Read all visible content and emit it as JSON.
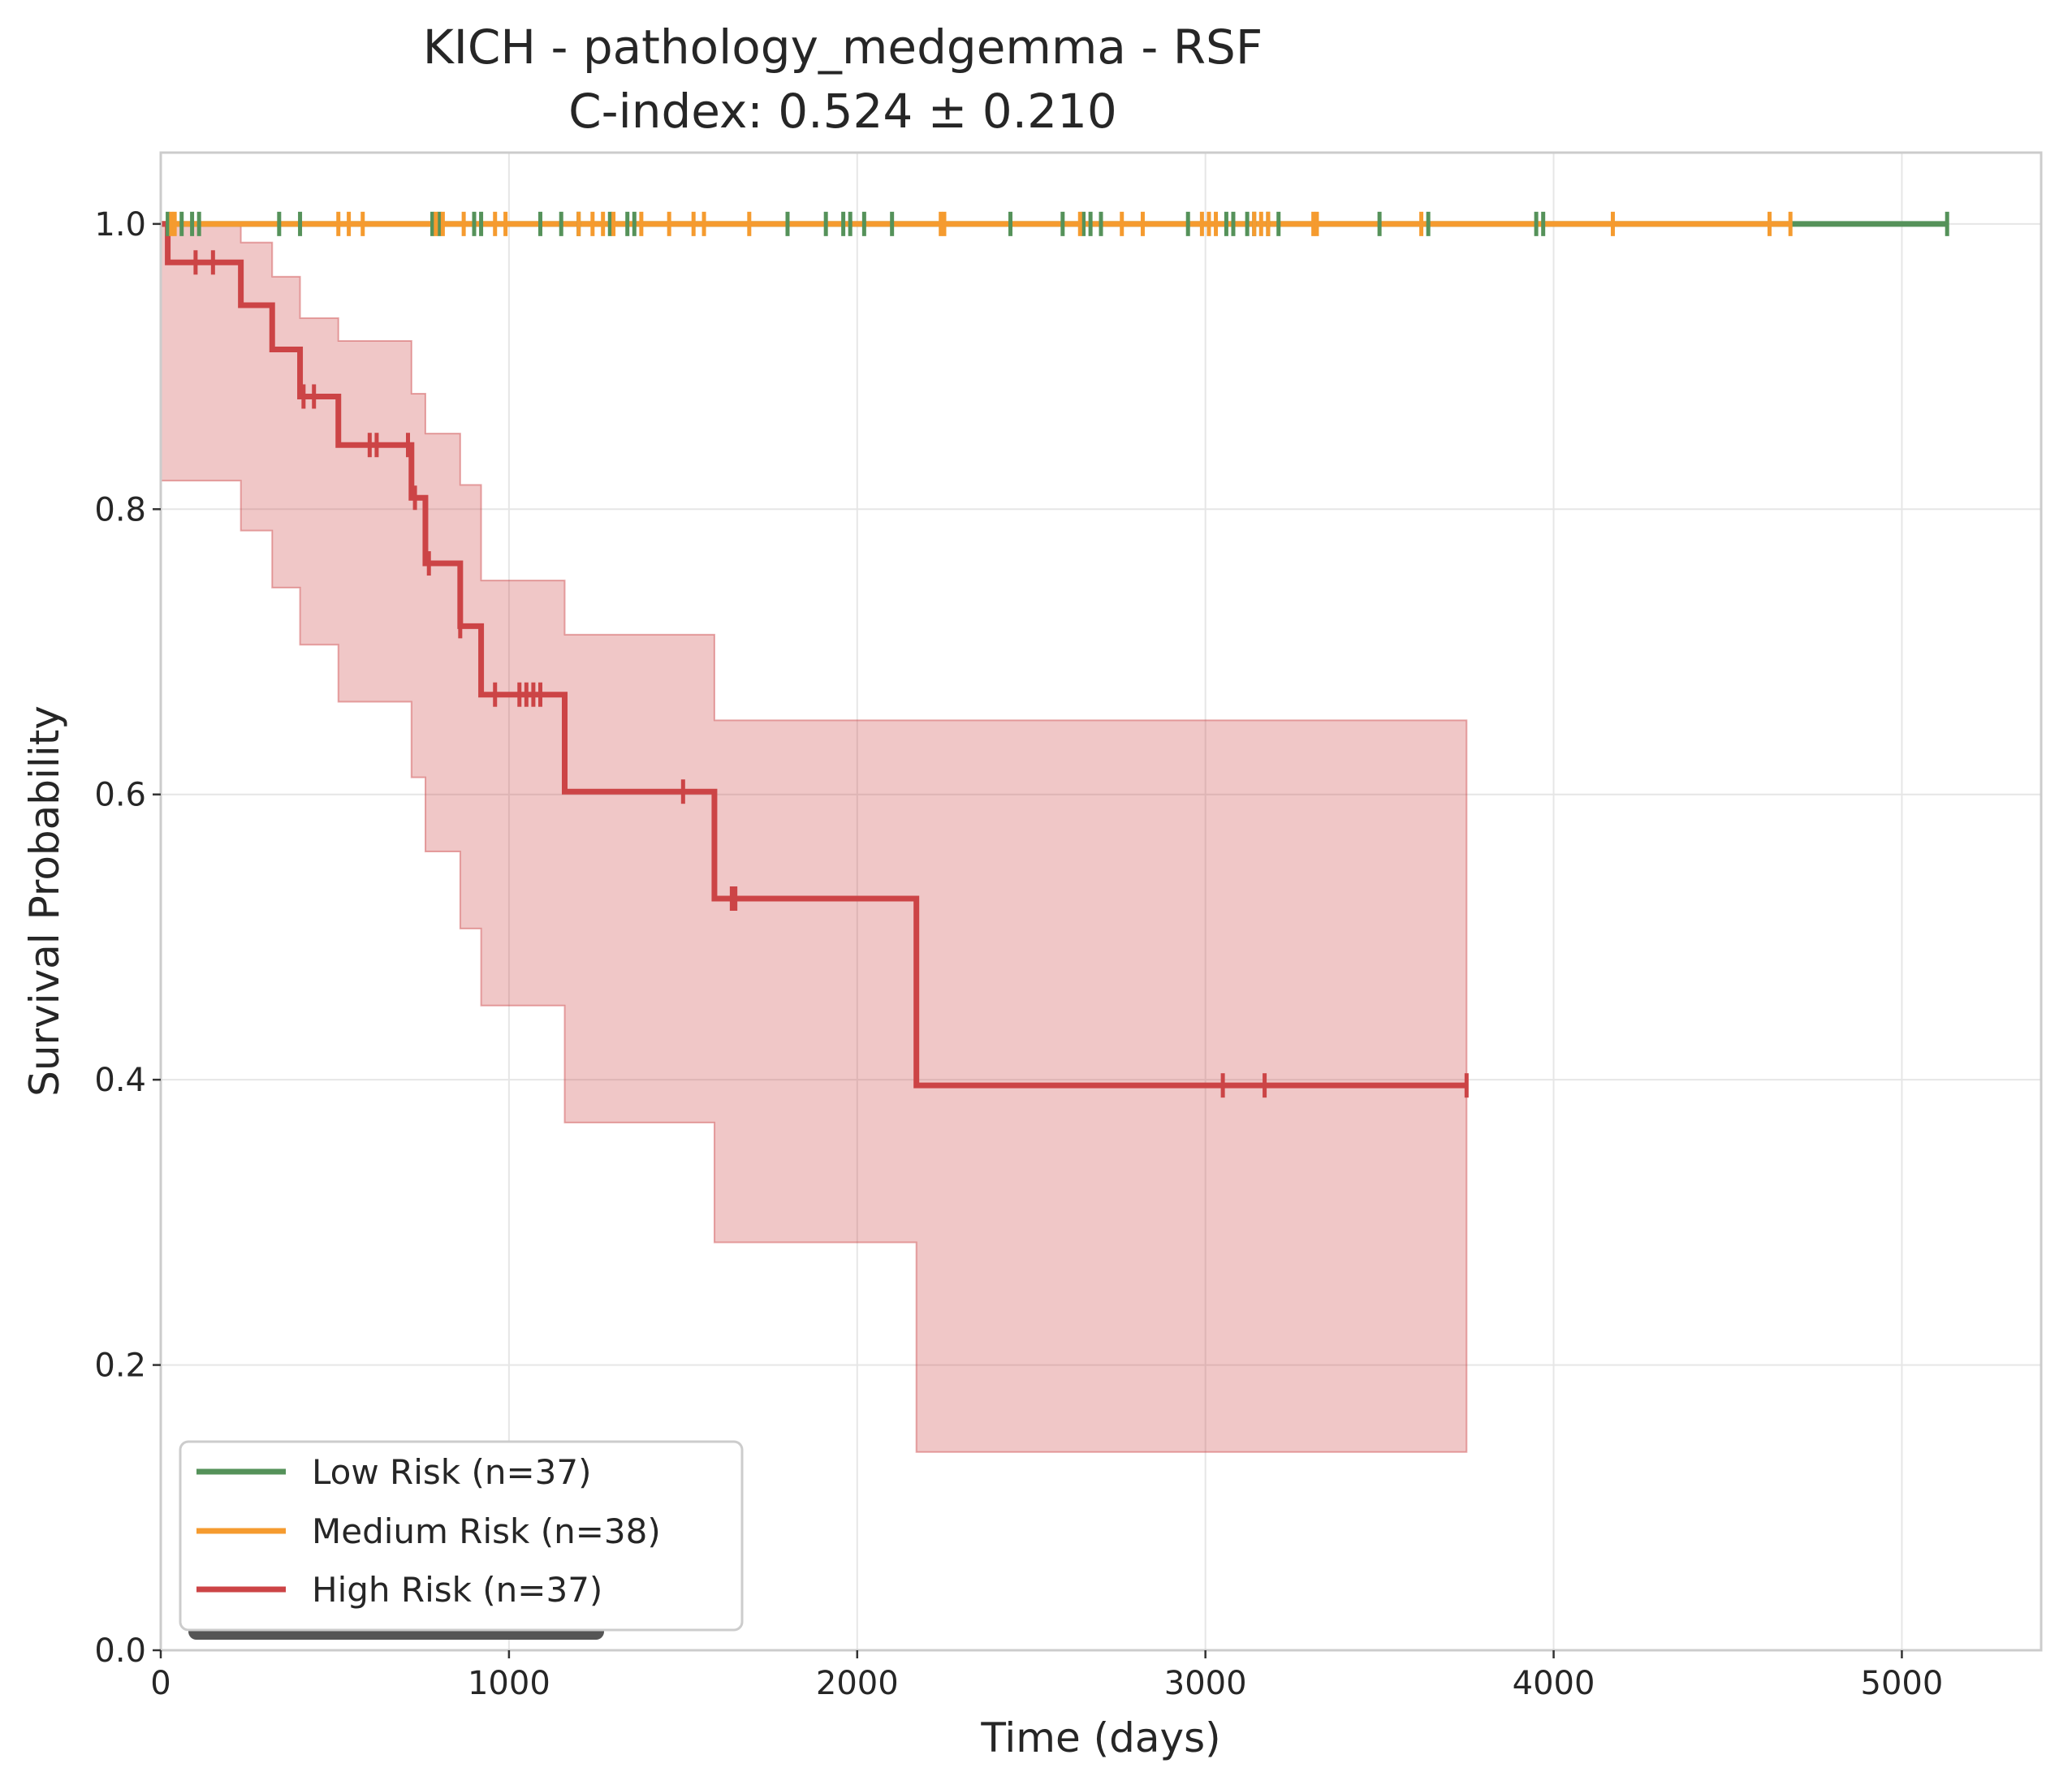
{
  "chart_data": {
    "type": "line",
    "title": "KICH - pathology_medgemma - RSF",
    "subtitle": "C-index: 0.524 ± 0.210",
    "xlabel": "Time (days)",
    "ylabel": "Survival Probability",
    "xlim": [
      0,
      5400
    ],
    "ylim": [
      0,
      1.05
    ],
    "xticks": [
      0,
      1000,
      2000,
      3000,
      4000,
      5000
    ],
    "xtick_labels": [
      "0",
      "1000",
      "2000",
      "3000",
      "4000",
      "5000"
    ],
    "yticks": [
      0.0,
      0.2,
      0.4,
      0.6,
      0.8,
      1.0
    ],
    "ytick_labels": [
      "0.0",
      "0.2",
      "0.4",
      "0.6",
      "0.8",
      "1.0"
    ],
    "grid": true,
    "legend_position": "bottom-left",
    "series": [
      {
        "name": "Low Risk (n=37)",
        "color": "#55925a",
        "steps": [
          [
            0,
            1.0
          ],
          [
            5130,
            1.0
          ]
        ],
        "censor_times": [
          20,
          60,
          90,
          110,
          340,
          400,
          780,
          800,
          900,
          920,
          1090,
          1150,
          1200,
          1290,
          1340,
          1360,
          1800,
          1910,
          1960,
          1980,
          2020,
          2100,
          2440,
          2590,
          2650,
          2670,
          2700,
          2950,
          3060,
          3080,
          3120,
          3140,
          3180,
          3210,
          3500,
          3640,
          3950,
          3970,
          5130
        ]
      },
      {
        "name": "Medium Risk (n=38)",
        "color": "#f59b2f",
        "steps": [
          [
            0,
            1.0
          ],
          [
            4680,
            1.0
          ]
        ],
        "censor_times": [
          30,
          40,
          510,
          540,
          580,
          790,
          810,
          870,
          960,
          990,
          1200,
          1240,
          1270,
          1300,
          1380,
          1460,
          1530,
          1560,
          1690,
          2240,
          2250,
          2640,
          2760,
          2820,
          2990,
          3010,
          3030,
          3140,
          3160,
          3180,
          3310,
          3320,
          3620,
          4170,
          4620,
          4680
        ]
      },
      {
        "name": "High Risk (n=37)",
        "color": "#cc4446",
        "steps": [
          [
            0,
            1.0
          ],
          [
            20,
            0.973
          ],
          [
            230,
            0.943
          ],
          [
            320,
            0.912
          ],
          [
            400,
            0.879
          ],
          [
            510,
            0.845
          ],
          [
            720,
            0.808
          ],
          [
            760,
            0.762
          ],
          [
            860,
            0.718
          ],
          [
            920,
            0.67
          ],
          [
            1160,
            0.602
          ],
          [
            1590,
            0.527
          ],
          [
            2170,
            0.396
          ],
          [
            3750,
            0.396
          ]
        ],
        "ci_upper": [
          [
            0,
            1.0
          ],
          [
            230,
            0.987
          ],
          [
            320,
            0.963
          ],
          [
            400,
            0.934
          ],
          [
            510,
            0.918
          ],
          [
            720,
            0.881
          ],
          [
            760,
            0.853
          ],
          [
            860,
            0.817
          ],
          [
            920,
            0.75
          ],
          [
            1160,
            0.712
          ],
          [
            1590,
            0.652
          ],
          [
            2170,
            0.652
          ],
          [
            3750,
            0.652
          ]
        ],
        "ci_lower": [
          [
            0,
            0.82
          ],
          [
            230,
            0.785
          ],
          [
            320,
            0.745
          ],
          [
            400,
            0.705
          ],
          [
            510,
            0.665
          ],
          [
            720,
            0.612
          ],
          [
            760,
            0.56
          ],
          [
            860,
            0.506
          ],
          [
            920,
            0.452
          ],
          [
            1160,
            0.37
          ],
          [
            1590,
            0.286
          ],
          [
            2170,
            0.139
          ],
          [
            3750,
            0.139
          ]
        ],
        "censor_times": [
          100,
          150,
          410,
          440,
          600,
          620,
          710,
          730,
          770,
          860,
          960,
          1030,
          1050,
          1070,
          1090,
          1500,
          1640,
          1650,
          3050,
          3170,
          3750
        ]
      }
    ]
  }
}
